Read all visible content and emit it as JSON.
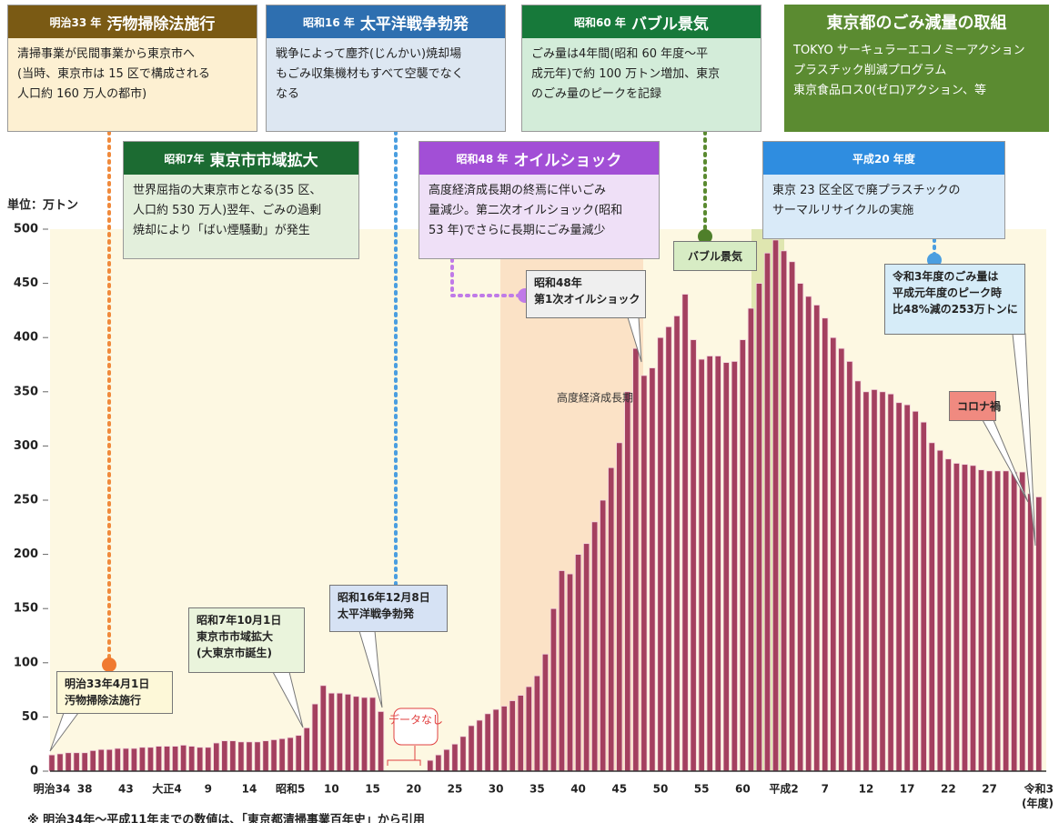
{
  "chart_data": {
    "type": "bar",
    "unit_label": "単位：万トン",
    "x_unit": "(年度)",
    "note": "※ 明治34年～平成11年までの数値は、「東京都清掃事業百年史」から引用",
    "color": "#a4405f",
    "ylim": [
      0,
      500
    ],
    "yticks": [
      0,
      50,
      100,
      150,
      200,
      250,
      300,
      350,
      400,
      450,
      500
    ],
    "grid": false,
    "categories": [
      "明治34",
      null,
      null,
      null,
      "38",
      null,
      null,
      null,
      null,
      "43",
      null,
      null,
      null,
      null,
      "大正4",
      null,
      null,
      null,
      null,
      "9",
      null,
      null,
      null,
      null,
      "14",
      null,
      null,
      null,
      null,
      "昭和5",
      null,
      null,
      null,
      null,
      "10",
      null,
      null,
      null,
      null,
      "15",
      null,
      null,
      null,
      null,
      "20",
      null,
      null,
      null,
      null,
      "25",
      null,
      null,
      null,
      null,
      "30",
      null,
      null,
      null,
      null,
      "35",
      null,
      null,
      null,
      null,
      "40",
      null,
      null,
      null,
      null,
      "45",
      null,
      null,
      null,
      null,
      "50",
      null,
      null,
      null,
      null,
      "55",
      null,
      null,
      null,
      null,
      "60",
      null,
      null,
      null,
      null,
      "平成2",
      null,
      null,
      null,
      null,
      "7",
      null,
      null,
      null,
      null,
      "12",
      null,
      null,
      null,
      null,
      "17",
      null,
      null,
      null,
      null,
      "22",
      null,
      null,
      null,
      null,
      "27",
      null,
      null,
      null,
      null,
      null,
      "令和3"
    ],
    "values": [
      15,
      16,
      17,
      17,
      17,
      19,
      20,
      20,
      21,
      21,
      21,
      22,
      22,
      23,
      23,
      23,
      24,
      23,
      22,
      22,
      26,
      28,
      28,
      27,
      27,
      27,
      28,
      29,
      30,
      31,
      33,
      40,
      62,
      79,
      72,
      72,
      71,
      69,
      68,
      68,
      55,
      null,
      null,
      null,
      null,
      null,
      10,
      15,
      20,
      25,
      32,
      42,
      47,
      53,
      57,
      60,
      65,
      70,
      78,
      88,
      108,
      150,
      185,
      182,
      200,
      210,
      230,
      250,
      280,
      303,
      350,
      390,
      365,
      372,
      400,
      410,
      420,
      440,
      398,
      380,
      383,
      383,
      377,
      378,
      398,
      427,
      450,
      478,
      490,
      480,
      470,
      450,
      438,
      430,
      418,
      400,
      390,
      378,
      360,
      350,
      352,
      350,
      348,
      340,
      338,
      332,
      322,
      303,
      296,
      288,
      284,
      283,
      282,
      278,
      277,
      277,
      277,
      276,
      276,
      256,
      253
    ],
    "band_labels": [
      "高度経済成長期"
    ],
    "no_data_label": "データなし",
    "boxes": [
      {
        "tag": "明治33 年",
        "title": "汚物掃除法施行",
        "lines": [
          "清掃事業が民間事業から東京市へ",
          "(当時、東京市は 15 区で構成される",
          "人口約 160 万人の都市)"
        ]
      },
      {
        "tag": "昭和16 年",
        "title": "太平洋戦争勃発",
        "lines": [
          "戦争によって塵芥(じんかい)焼却場",
          "もごみ収集機材もすべて空襲でなく",
          "なる"
        ]
      },
      {
        "tag": "昭和60 年",
        "title": "バブル景気",
        "lines": [
          "ごみ量は4年間(昭和 60 年度～平",
          "成元年)で約 100 万トン増加、東京",
          "のごみ量のピークを記録"
        ]
      },
      {
        "tag": "昭和7年",
        "title": "東京市市域拡大",
        "lines": [
          "世界屈指の大東京市となる(35 区、",
          "人口約 530 万人)翌年、ごみの過剰",
          "焼却により「ばい煙騒動」が発生"
        ]
      },
      {
        "tag": "昭和48 年",
        "title": "オイルショック",
        "lines": [
          "高度経済成長期の終焉に伴いごみ",
          "量減少。第二次オイルショック(昭和",
          "53 年)でさらに長期にごみ量減少"
        ]
      },
      {
        "tag": "平成20 年度",
        "title": null,
        "lines": [
          "東京 23 区全区で廃プラスチックの",
          "サーマルリサイクルの実施"
        ]
      }
    ],
    "initiative": {
      "title": "東京都のごみ減量の取組",
      "lines": [
        "TOKYO サーキュラーエコノミーアクション",
        "プラスチック削減プログラム",
        "東京食品ロス0(ゼロ)アクション、等"
      ]
    },
    "callouts": [
      {
        "lines": [
          "明治33年4月1日",
          "汚物掃除法施行"
        ]
      },
      {
        "lines": [
          "昭和7年10月1日",
          "東京市市域拡大",
          "(大東京市誕生)"
        ]
      },
      {
        "lines": [
          "昭和16年12月8日",
          "太平洋戦争勃発"
        ]
      },
      {
        "lines": [
          "昭和48年",
          "第1次オイルショック"
        ]
      },
      {
        "lines": [
          "バブル景気"
        ]
      },
      {
        "lines": [
          "令和3年度のごみ量は",
          "平成元年度のピーク時",
          "比48%減の253万トンに"
        ]
      },
      {
        "lines": [
          "コロナ禍"
        ]
      }
    ]
  }
}
